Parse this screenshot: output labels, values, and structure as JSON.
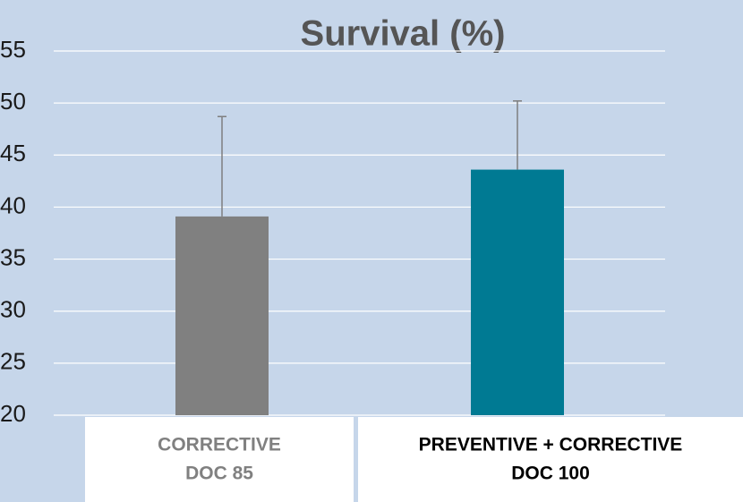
{
  "chart_data": {
    "type": "bar",
    "title": "Survival (%)",
    "categories": [
      [
        "CORRECTIVE",
        "DOC 85"
      ],
      [
        "PREVENTIVE + CORRECTIVE",
        "DOC 100"
      ]
    ],
    "values": [
      39.1,
      43.6
    ],
    "errors": [
      9.6,
      6.6
    ],
    "colors": [
      "#808080",
      "#007a93"
    ],
    "error_color": "#7f7f7f",
    "ylim": [
      20,
      55
    ],
    "yticks": [
      20,
      25,
      30,
      35,
      40,
      45,
      50,
      55
    ],
    "grid": true
  }
}
